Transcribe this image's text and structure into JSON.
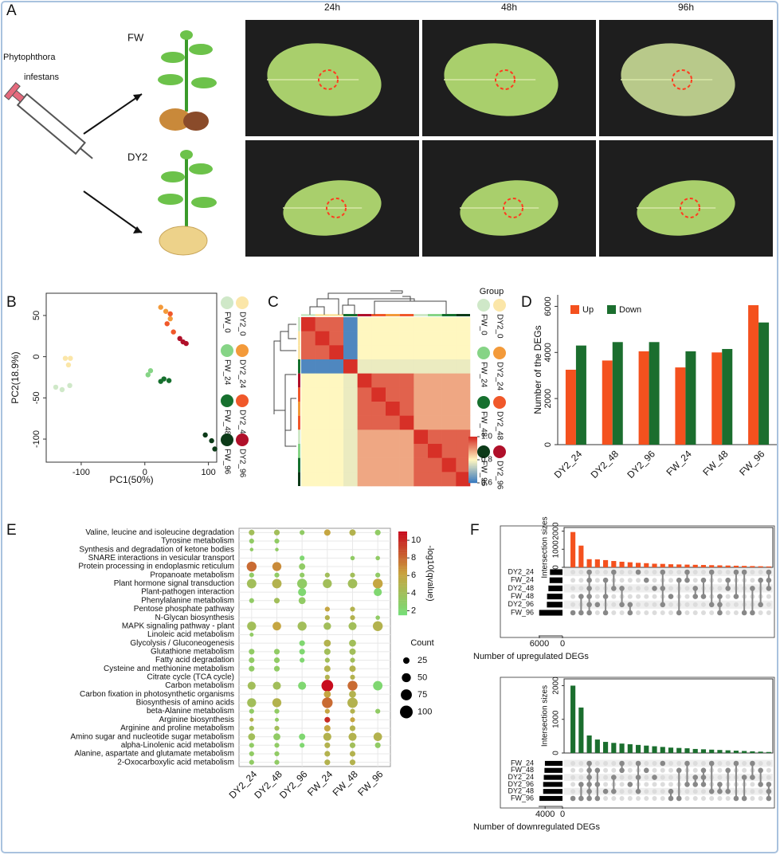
{
  "panel_labels": [
    "A",
    "B",
    "C",
    "D",
    "E",
    "F"
  ],
  "panel_a": {
    "pathogen": [
      "Phytophthora",
      "infestans"
    ],
    "genotypes": [
      "FW",
      "DY2"
    ],
    "timepoints": [
      "24h",
      "48h",
      "96h"
    ]
  },
  "chart_data": [
    {
      "type": "scatter",
      "xlabel": "PC1(50%)",
      "ylabel": "PC2(18.9%)",
      "xlim": [
        -155,
        113
      ],
      "ylim": [
        -128,
        77
      ],
      "xticks": [
        -100,
        0,
        100
      ],
      "yticks": [
        -100,
        -50,
        0,
        50
      ],
      "series": [
        {
          "name": "FW_0",
          "color": "#cfe8c8",
          "x": [
            -140,
            -130,
            -118
          ],
          "y": [
            -37,
            -40,
            -35
          ]
        },
        {
          "name": "DY2_0",
          "color": "#fbe6a8",
          "x": [
            -125,
            -117,
            -120
          ],
          "y": [
            -2,
            -2,
            -10
          ]
        },
        {
          "name": "FW_24",
          "color": "#86d486",
          "x": [
            5,
            9
          ],
          "y": [
            -22,
            -17
          ]
        },
        {
          "name": "DY2_24",
          "color": "#f39a3a",
          "x": [
            25,
            33,
            40
          ],
          "y": [
            60,
            55,
            46
          ]
        },
        {
          "name": "FW_48",
          "color": "#16702e",
          "x": [
            25,
            30,
            38
          ],
          "y": [
            -30,
            -27,
            -29
          ]
        },
        {
          "name": "DY2_48",
          "color": "#f0582a",
          "x": [
            35,
            45,
            40
          ],
          "y": [
            40,
            30,
            52
          ]
        },
        {
          "name": "FW_96",
          "color": "#0c3a18",
          "x": [
            95,
            105,
            110
          ],
          "y": [
            -95,
            -102,
            -112
          ]
        },
        {
          "name": "DY2_96",
          "color": "#b0102a",
          "x": [
            55,
            60,
            65
          ],
          "y": [
            22,
            18,
            16
          ]
        }
      ]
    },
    {
      "type": "heatmap",
      "legend_title": "Group",
      "groups": [
        {
          "name": "FW_0",
          "color": "#cfe8c8"
        },
        {
          "name": "DY2_0",
          "color": "#fbe6a8"
        },
        {
          "name": "FW_24",
          "color": "#86d486"
        },
        {
          "name": "DY2_24",
          "color": "#f39a3a"
        },
        {
          "name": "FW_48",
          "color": "#16702e"
        },
        {
          "name": "DY2_48",
          "color": "#f0582a"
        },
        {
          "name": "FW_96",
          "color": "#0c3a18"
        },
        {
          "name": "DY2_96",
          "color": "#b0102a"
        }
      ],
      "strip_colors": [
        "#cfe8c8",
        "#fbe6a8",
        "#fbe6a8",
        "#16702e",
        "#b0102a",
        "#f0582a",
        "#f39a3a",
        "#f0582a",
        "#cfe8c8",
        "#86d486",
        "#16702e",
        "#0c3a18"
      ],
      "values": [
        [
          1,
          0.95,
          0.95,
          0.62,
          0.8,
          0.8,
          0.8,
          0.8,
          0.8,
          0.8,
          0.8,
          0.8
        ],
        [
          0.95,
          1,
          0.95,
          0.62,
          0.8,
          0.8,
          0.8,
          0.8,
          0.8,
          0.8,
          0.8,
          0.8
        ],
        [
          0.95,
          0.95,
          1,
          0.62,
          0.8,
          0.8,
          0.8,
          0.8,
          0.8,
          0.8,
          0.8,
          0.8
        ],
        [
          0.62,
          0.62,
          0.62,
          1,
          0.78,
          0.78,
          0.78,
          0.78,
          0.78,
          0.78,
          0.78,
          0.78
        ],
        [
          0.8,
          0.8,
          0.8,
          0.78,
          1,
          0.95,
          0.95,
          0.95,
          0.88,
          0.88,
          0.88,
          0.88
        ],
        [
          0.8,
          0.8,
          0.8,
          0.78,
          0.95,
          1,
          0.95,
          0.95,
          0.88,
          0.88,
          0.88,
          0.88
        ],
        [
          0.8,
          0.8,
          0.8,
          0.78,
          0.95,
          0.95,
          1,
          0.95,
          0.88,
          0.88,
          0.88,
          0.88
        ],
        [
          0.8,
          0.8,
          0.8,
          0.78,
          0.95,
          0.95,
          0.95,
          1,
          0.88,
          0.88,
          0.88,
          0.88
        ],
        [
          0.8,
          0.8,
          0.8,
          0.78,
          0.88,
          0.88,
          0.88,
          0.88,
          1,
          0.95,
          0.95,
          0.95
        ],
        [
          0.8,
          0.8,
          0.8,
          0.78,
          0.88,
          0.88,
          0.88,
          0.88,
          0.95,
          1,
          0.95,
          0.95
        ],
        [
          0.8,
          0.8,
          0.8,
          0.78,
          0.88,
          0.88,
          0.88,
          0.88,
          0.95,
          0.95,
          1,
          0.95
        ],
        [
          0.8,
          0.8,
          0.8,
          0.78,
          0.88,
          0.88,
          0.88,
          0.88,
          0.95,
          0.95,
          0.95,
          1
        ]
      ],
      "color_lim": [
        0.6,
        1
      ],
      "color_ticks": [
        {
          "value": 1,
          "label": "1.0"
        },
        0.8,
        0.6
      ],
      "colors": [
        "#3b7bbf",
        "#fff7c0",
        "#d73027"
      ]
    },
    {
      "type": "bar",
      "ylabel": "Number of the DEGs",
      "categories": [
        "DY2_24",
        "DY2_48",
        "DY2_96",
        "FW_24",
        "FW_48",
        "FW_96"
      ],
      "series": [
        {
          "name": "Up",
          "color": "#f4511e",
          "values": [
            3250,
            3650,
            4050,
            3350,
            4000,
            6050
          ]
        },
        {
          "name": "Down",
          "color": "#1b6e2e",
          "values": [
            4300,
            4450,
            4450,
            4050,
            4150,
            5300
          ]
        }
      ],
      "ylim": [
        0,
        6500
      ],
      "yticks": [
        0,
        2000,
        4000,
        6000
      ]
    },
    {
      "type": "dotplot",
      "x_categories": [
        "DY2_24",
        "DY2_48",
        "DY2_96",
        "FW_24",
        "FW_48",
        "FW_96"
      ],
      "y_categories": [
        "Valine, leucine and isoleucine degradation",
        "Tyrosine metabolism",
        "Synthesis and degradation of ketone bodies",
        "SNARE interactions in vesicular transport",
        "Protein processing in endoplasmic reticulum",
        "Propanoate metabolism",
        "Plant hormone signal transduction",
        "Plant-pathogen interaction",
        "Phenylalanine metabolism",
        "Pentose phosphate pathway",
        "N-Glycan biosynthesis",
        "MAPK signaling pathway - plant",
        "Linoleic acid metabolism",
        "Glycolysis / Gluconeogenesis",
        "Glutathione metabolism",
        "Fatty acid degradation",
        "Cysteine and methionine metabolism",
        "Citrate cycle (TCA cycle)",
        "Carbon metabolism",
        "Carbon fixation in photosynthetic organisms",
        "Biosynthesis of amino acids",
        "beta-Alanine metabolism",
        "Arginine biosynthesis",
        "Arginine and proline metabolism",
        "Amino sugar and nucleotide sugar metabolism",
        "alpha-Linolenic acid metabolism",
        "Alanine, aspartate and glutamate metabolism",
        "2-Oxocarboxylic acid metabolism"
      ],
      "log_q": [
        [
          4,
          4,
          3,
          6,
          5,
          3
        ],
        [
          3,
          3,
          null,
          null,
          null,
          null
        ],
        [
          3,
          3,
          null,
          null,
          null,
          null
        ],
        [
          null,
          null,
          2,
          null,
          3,
          3
        ],
        [
          8,
          7,
          3,
          null,
          null,
          null
        ],
        [
          3,
          3,
          3,
          4,
          4,
          3
        ],
        [
          4,
          5,
          3,
          4,
          4,
          6
        ],
        [
          null,
          null,
          2,
          null,
          null,
          2
        ],
        [
          3,
          4,
          3,
          null,
          null,
          null
        ],
        [
          null,
          null,
          null,
          6,
          5,
          null
        ],
        [
          null,
          null,
          null,
          5,
          5,
          3
        ],
        [
          4,
          6,
          4,
          4,
          4,
          5
        ],
        [
          3,
          null,
          null,
          null,
          null,
          null
        ],
        [
          null,
          null,
          2,
          5,
          4,
          null
        ],
        [
          3,
          3,
          2,
          4,
          4,
          null
        ],
        [
          3,
          3,
          2,
          4,
          4,
          null
        ],
        [
          3,
          3,
          null,
          5,
          5,
          null
        ],
        [
          null,
          null,
          null,
          5,
          5,
          null
        ],
        [
          4,
          4,
          2,
          11,
          8,
          2
        ],
        [
          null,
          null,
          null,
          6,
          5,
          null
        ],
        [
          4,
          5,
          null,
          8,
          5,
          null
        ],
        [
          3,
          3,
          null,
          6,
          5,
          3
        ],
        [
          5,
          3,
          null,
          10,
          6,
          null
        ],
        [
          4,
          4,
          null,
          6,
          5,
          null
        ],
        [
          4,
          3,
          2,
          5,
          5,
          5
        ],
        [
          3,
          3,
          2,
          5,
          4,
          3
        ],
        [
          3,
          3,
          null,
          5,
          5,
          null
        ],
        [
          3,
          3,
          null,
          5,
          5,
          null
        ]
      ],
      "count": [
        [
          20,
          20,
          15,
          25,
          25,
          20
        ],
        [
          15,
          15,
          null,
          null,
          null,
          null
        ],
        [
          8,
          8,
          null,
          null,
          null,
          null
        ],
        [
          null,
          null,
          15,
          null,
          12,
          12
        ],
        [
          60,
          50,
          25,
          null,
          null,
          null
        ],
        [
          15,
          15,
          15,
          15,
          15,
          15
        ],
        [
          55,
          55,
          60,
          50,
          55,
          60
        ],
        [
          null,
          null,
          40,
          null,
          null,
          40
        ],
        [
          15,
          20,
          30,
          null,
          null,
          null
        ],
        [
          null,
          null,
          null,
          15,
          15,
          null
        ],
        [
          null,
          null,
          null,
          15,
          15,
          12
        ],
        [
          50,
          45,
          50,
          35,
          40,
          60
        ],
        [
          10,
          null,
          null,
          null,
          null,
          null
        ],
        [
          null,
          null,
          20,
          30,
          30,
          null
        ],
        [
          20,
          20,
          20,
          25,
          25,
          null
        ],
        [
          20,
          20,
          15,
          15,
          15,
          null
        ],
        [
          20,
          20,
          null,
          25,
          25,
          null
        ],
        [
          null,
          null,
          null,
          15,
          15,
          null
        ],
        [
          40,
          40,
          40,
          85,
          60,
          55
        ],
        [
          null,
          null,
          null,
          30,
          30,
          null
        ],
        [
          50,
          50,
          null,
          70,
          65,
          null
        ],
        [
          15,
          15,
          null,
          15,
          15,
          15
        ],
        [
          10,
          10,
          null,
          20,
          15,
          null
        ],
        [
          15,
          15,
          null,
          25,
          20,
          null
        ],
        [
          30,
          30,
          25,
          40,
          40,
          45
        ],
        [
          15,
          15,
          15,
          20,
          20,
          20
        ],
        [
          15,
          15,
          null,
          20,
          20,
          null
        ],
        [
          15,
          15,
          null,
          20,
          20,
          null
        ]
      ],
      "color_label": "-log10(qvalue)",
      "color_lim": [
        1.5,
        11
      ],
      "color_ticks": [
        2,
        4,
        6,
        8,
        10
      ],
      "colors": [
        "#77dd77",
        "#c9a33f",
        "#c80c1e"
      ],
      "size_label": "Count",
      "size_ticks": [
        25,
        50,
        75,
        100
      ]
    },
    {
      "type": "upset",
      "ylabel": "Intersection sizes",
      "xlabel": "Number of upregulated DEGs",
      "color": "#f4511e",
      "ylim": [
        0,
        2200
      ],
      "yticks": [
        0,
        1000,
        2000
      ],
      "intersections": [
        1950,
        1200,
        450,
        440,
        400,
        350,
        310,
        280,
        250,
        230,
        200,
        190,
        170,
        160,
        150,
        140,
        130,
        120,
        110,
        100,
        90,
        80,
        70,
        60,
        50
      ],
      "membership": [
        [
          5
        ],
        [
          3,
          5
        ],
        [
          0,
          1,
          2,
          3,
          4,
          5
        ],
        [
          4
        ],
        [
          1,
          3,
          5
        ],
        [
          0,
          2
        ],
        [
          2,
          4
        ],
        [
          4,
          5
        ],
        [
          0
        ],
        [
          1
        ],
        [
          2
        ],
        [
          0,
          2,
          4
        ],
        [
          3
        ],
        [
          1,
          5
        ],
        [
          0,
          1
        ],
        [
          2,
          3
        ],
        [
          1,
          3
        ],
        [
          0,
          4
        ],
        [
          3,
          4,
          5
        ],
        [
          1,
          2
        ],
        [
          0,
          3
        ],
        [
          0,
          5
        ],
        [
          2,
          5
        ],
        [
          1,
          4
        ],
        [
          0,
          1,
          2
        ]
      ],
      "sets": [
        "DY2_24",
        "FW_24",
        "DY2_48",
        "FW_48",
        "DY2_96",
        "FW_96"
      ],
      "set_sizes": [
        3250,
        3350,
        3650,
        4000,
        4050,
        6050
      ],
      "set_xlim": [
        0,
        6200
      ],
      "set_xticks": [
        0,
        6000
      ]
    },
    {
      "type": "upset",
      "ylabel": "Intersection sizes",
      "xlabel": "Number of downregulated DEGs",
      "color": "#1b6e2e",
      "ylim": [
        0,
        2200
      ],
      "yticks": [
        0,
        1000,
        2000
      ],
      "intersections": [
        2000,
        1350,
        520,
        400,
        330,
        300,
        280,
        260,
        240,
        220,
        200,
        180,
        160,
        150,
        140,
        120,
        110,
        100,
        90,
        80,
        70,
        60,
        50,
        40,
        30
      ],
      "membership": [
        [
          5
        ],
        [
          3,
          5
        ],
        [
          0,
          1,
          2,
          3,
          4,
          5
        ],
        [
          1,
          3,
          5
        ],
        [
          4
        ],
        [
          2,
          4
        ],
        [
          0,
          1
        ],
        [
          3
        ],
        [
          0,
          2,
          4
        ],
        [
          1
        ],
        [
          2
        ],
        [
          0
        ],
        [
          4,
          5
        ],
        [
          1,
          5
        ],
        [
          0,
          3
        ],
        [
          2,
          3
        ],
        [
          1,
          2,
          3
        ],
        [
          0,
          4
        ],
        [
          3,
          4
        ],
        [
          1,
          4
        ],
        [
          0,
          5
        ],
        [
          2,
          5
        ],
        [
          0,
          2
        ],
        [
          1,
          3
        ],
        [
          3,
          4,
          5
        ]
      ],
      "sets": [
        "FW_24",
        "FW_48",
        "DY2_24",
        "DY2_96",
        "DY2_48",
        "FW_96"
      ],
      "set_sizes": [
        4050,
        4150,
        4300,
        4450,
        4450,
        5300
      ],
      "set_xlim": [
        0,
        5500
      ],
      "set_xticks": [
        0,
        4000
      ]
    }
  ]
}
